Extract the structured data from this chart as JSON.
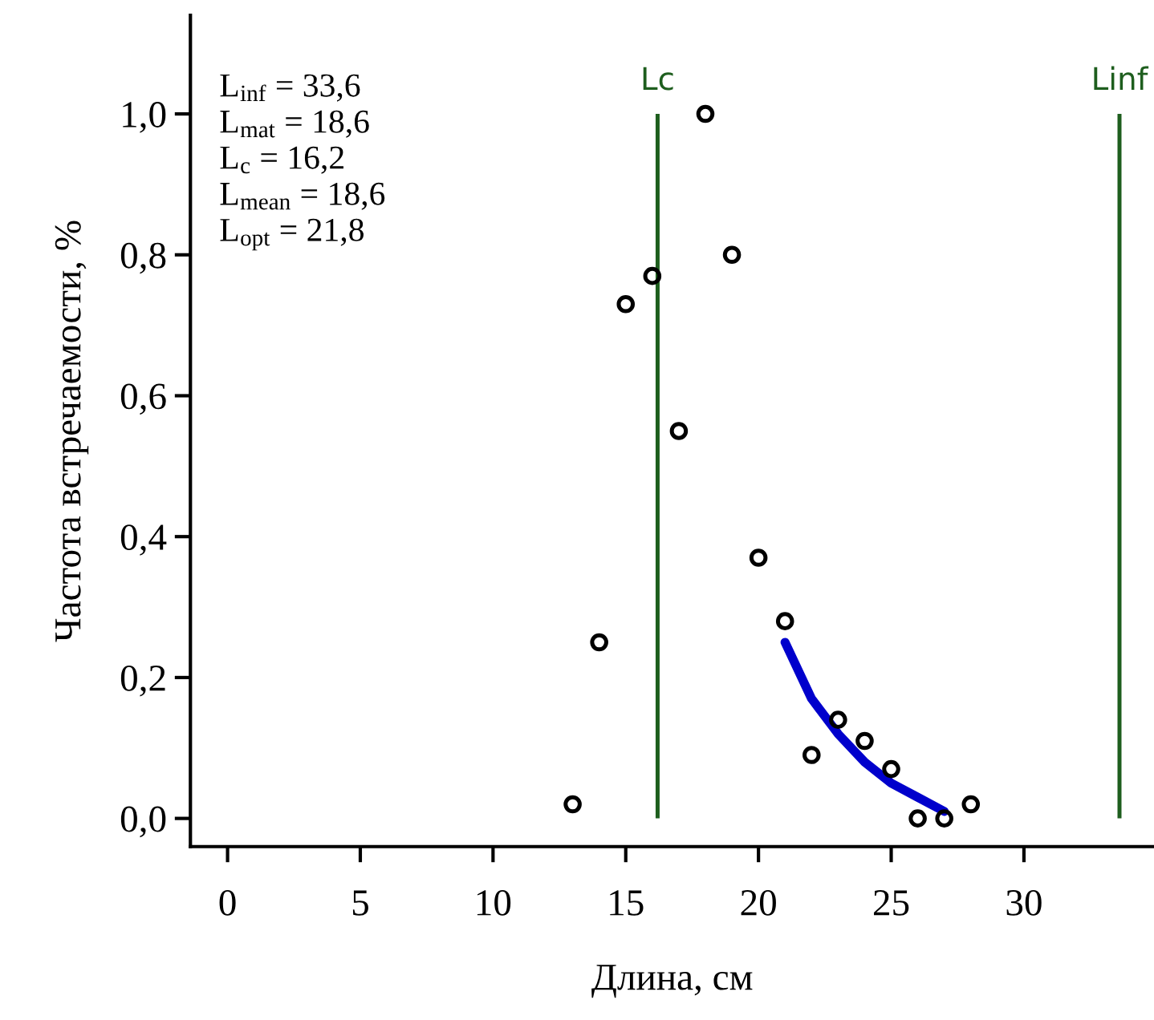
{
  "chart_data": {
    "type": "scatter",
    "xlabel": "Длина, см",
    "ylabel": "Частота встречаемости, %",
    "xlim": [
      -1.4,
      34.9
    ],
    "ylim": [
      -0.04,
      1.14
    ],
    "xticks": [
      0,
      5,
      10,
      15,
      20,
      25,
      30
    ],
    "yticks": [
      {
        "value": 0,
        "label": "0,0"
      },
      {
        "value": 0.2,
        "label": "0,2"
      },
      {
        "value": 0.4,
        "label": "0,4"
      },
      {
        "value": 0.6,
        "label": "0,6"
      },
      {
        "value": 0.8,
        "label": "0,8"
      },
      {
        "value": 1.0,
        "label": "1,0"
      }
    ],
    "grid": false,
    "series": [
      {
        "marker": "circle",
        "color": "#000000",
        "x": [
          13,
          14,
          15,
          16,
          17,
          18,
          19,
          20,
          21,
          22,
          23,
          24,
          25,
          26,
          27,
          28
        ],
        "values": [
          0.02,
          0.25,
          0.73,
          0.77,
          0.55,
          1.0,
          0.8,
          0.37,
          0.28,
          0.09,
          0.14,
          0.11,
          0.07,
          0.0,
          0.0,
          0.02
        ]
      },
      {
        "type": "line",
        "color": "#0000cc",
        "x": [
          21,
          22,
          23,
          24,
          25,
          26,
          27
        ],
        "values": [
          0.25,
          0.17,
          0.12,
          0.08,
          0.05,
          0.03,
          0.01
        ]
      }
    ],
    "ref_lines": [
      {
        "axis": "x",
        "value": 16.2,
        "label": "Lc",
        "color": "#1e5e1e"
      },
      {
        "axis": "x",
        "value": 33.6,
        "label": "Linf",
        "color": "#1e5e1e"
      }
    ],
    "annotations": [
      "L$_{inf}$ = 33,6\nL$_{mat}$ = 18,6\nL$_{c}$ = 16,2\nL$_{mean}$ = 18,6\nL$_{opt}$ = 21,8"
    ]
  }
}
